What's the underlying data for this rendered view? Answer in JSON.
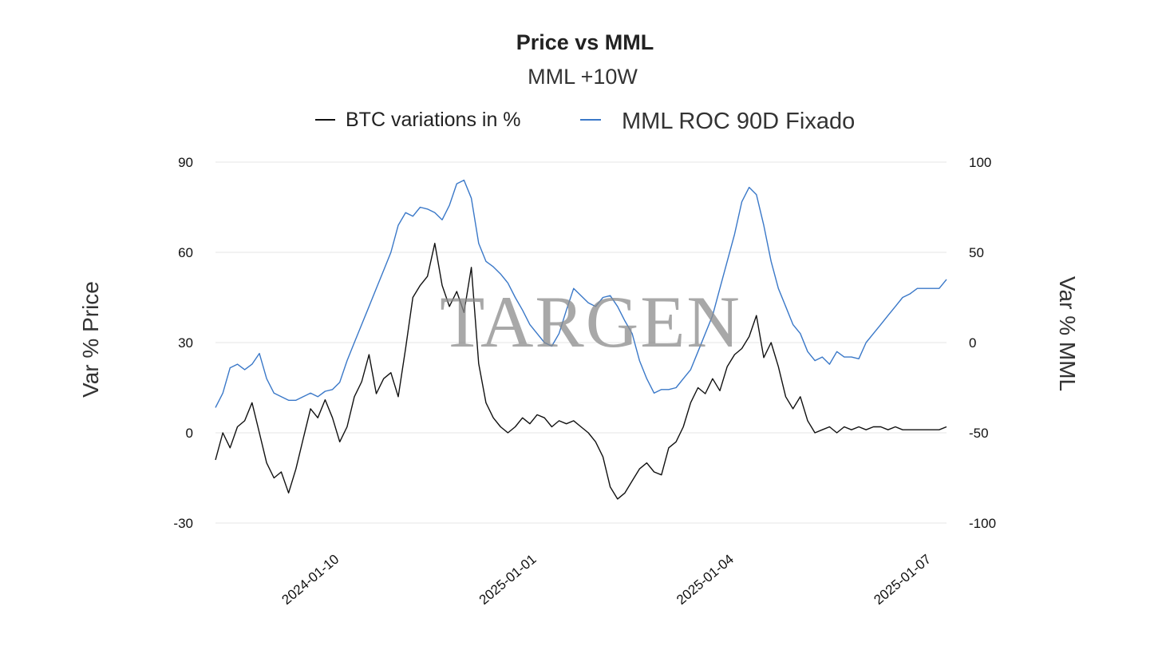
{
  "chart_data": {
    "type": "line",
    "title": "Price vs MML",
    "subtitle": "MML +10W",
    "watermark": "TARGEN",
    "ylabel_left": "Var % Price",
    "ylabel_right": "Var % MML",
    "ylim_left": [
      -30,
      90
    ],
    "ylim_right": [
      -100,
      100
    ],
    "yticks_left": [
      "-30",
      "0",
      "30",
      "60",
      "90"
    ],
    "yticks_right": [
      "-100",
      "-50",
      "0",
      "50",
      "100"
    ],
    "yticks_left_values": [
      -30,
      0,
      30,
      60,
      90
    ],
    "yticks_right_values": [
      -100,
      -50,
      0,
      50,
      100
    ],
    "xlim": [
      0,
      100
    ],
    "xticks": [
      "2024-01-10",
      "2025-01-01",
      "2025-01-04",
      "2025-01-07"
    ],
    "xticks_values": [
      17,
      44,
      71,
      98
    ],
    "grid": true,
    "legend_position": "top",
    "series": [
      {
        "name": "BTC variations in %",
        "axis": "left",
        "color": "#111111",
        "x": [
          0,
          1,
          2,
          3,
          4,
          5,
          6,
          7,
          8,
          9,
          10,
          11,
          12,
          13,
          14,
          15,
          16,
          17,
          18,
          19,
          20,
          21,
          22,
          23,
          24,
          25,
          26,
          27,
          28,
          29,
          30,
          31,
          32,
          33,
          34,
          35,
          36,
          37,
          38,
          39,
          40,
          41,
          42,
          43,
          44,
          45,
          46,
          47,
          48,
          49,
          50,
          51,
          52,
          53,
          54,
          55,
          56,
          57,
          58,
          59,
          60,
          61,
          62,
          63,
          64,
          65,
          66,
          67,
          68,
          69,
          70,
          71,
          72,
          73,
          74,
          75,
          76,
          77,
          78,
          79,
          80,
          81,
          82,
          83,
          84,
          85,
          86,
          87,
          88,
          89,
          90,
          91,
          92,
          93,
          94,
          95,
          96,
          97,
          98,
          99,
          100
        ],
        "y": [
          -9,
          0,
          -5,
          2,
          4,
          10,
          0,
          -10,
          -15,
          -13,
          -20,
          -12,
          -2,
          8,
          5,
          11,
          5,
          -3,
          2,
          12,
          17,
          26,
          13,
          18,
          20,
          12,
          28,
          45,
          49,
          52,
          63,
          49,
          42,
          47,
          40,
          55,
          23,
          10,
          5,
          2,
          0,
          2,
          5,
          3,
          6,
          5,
          2,
          4,
          3,
          4,
          2,
          0,
          -3,
          -8,
          -18,
          -22,
          -20,
          -16,
          -12,
          -10,
          -13,
          -14,
          -5,
          -3,
          2,
          10,
          15,
          13,
          18,
          14,
          22,
          26,
          28,
          32,
          39,
          25,
          30,
          22,
          12,
          8,
          12,
          4,
          0,
          1,
          2,
          0,
          2,
          1,
          2,
          1,
          2,
          2,
          1,
          2,
          1,
          1,
          1,
          1,
          1,
          1,
          2
        ]
      },
      {
        "name": "MML ROC 90D Fixado",
        "axis": "right",
        "color": "#3a78c8",
        "x": [
          0,
          1,
          2,
          3,
          4,
          5,
          6,
          7,
          8,
          9,
          10,
          11,
          12,
          13,
          14,
          15,
          16,
          17,
          18,
          19,
          20,
          21,
          22,
          23,
          24,
          25,
          26,
          27,
          28,
          29,
          30,
          31,
          32,
          33,
          34,
          35,
          36,
          37,
          38,
          39,
          40,
          41,
          42,
          43,
          44,
          45,
          46,
          47,
          48,
          49,
          50,
          51,
          52,
          53,
          54,
          55,
          56,
          57,
          58,
          59,
          60,
          61,
          62,
          63,
          64,
          65,
          66,
          67,
          68,
          69,
          70,
          71,
          72,
          73,
          74,
          75,
          76,
          77,
          78,
          79,
          80,
          81,
          82,
          83,
          84,
          85,
          86,
          87,
          88,
          89,
          90,
          91,
          92,
          93,
          94,
          95,
          96,
          97,
          98,
          99,
          100
        ],
        "y": [
          -36,
          -28,
          -14,
          -12,
          -15,
          -12,
          -6,
          -20,
          -28,
          -30,
          -32,
          -32,
          -30,
          -28,
          -30,
          -27,
          -26,
          -22,
          -10,
          0,
          10,
          20,
          30,
          40,
          50,
          65,
          72,
          70,
          75,
          74,
          72,
          68,
          76,
          88,
          90,
          80,
          55,
          45,
          42,
          38,
          33,
          25,
          18,
          10,
          5,
          0,
          -2,
          5,
          18,
          30,
          26,
          22,
          20,
          25,
          26,
          20,
          12,
          5,
          -10,
          -20,
          -28,
          -26,
          -26,
          -25,
          -20,
          -15,
          -5,
          5,
          15,
          30,
          45,
          60,
          78,
          86,
          82,
          65,
          45,
          30,
          20,
          10,
          5,
          -5,
          -10,
          -8,
          -12,
          -5,
          -8,
          -8,
          -9,
          0,
          5,
          10,
          15,
          20,
          25,
          27,
          30,
          30,
          30,
          30,
          35
        ]
      }
    ]
  }
}
